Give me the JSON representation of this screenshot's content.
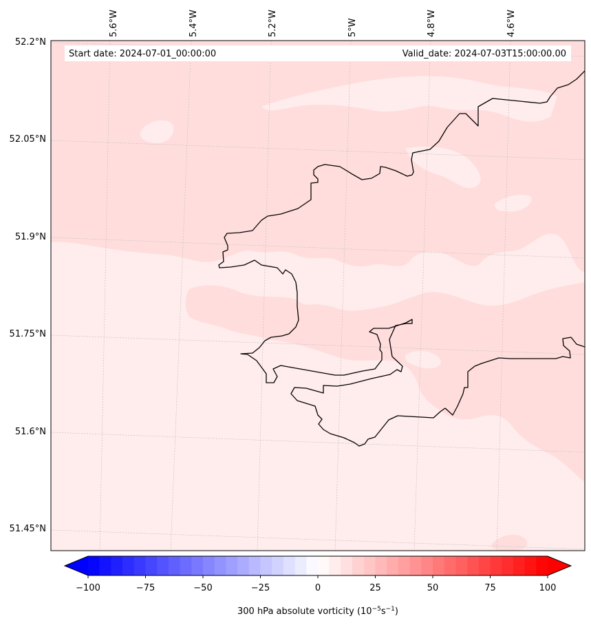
{
  "header": {
    "start_date": "Start date: 2024-07-01_00:00:00",
    "valid_date": "Valid_date: 2024-07-03T15:00:00.00"
  },
  "longitude_labels": [
    "5.6°W",
    "5.4°W",
    "5.2°W",
    "5°W",
    "4.8°W",
    "4.6°W"
  ],
  "latitude_labels": [
    "52.2°N",
    "52.05°N",
    "51.9°N",
    "51.75°N",
    "51.6°N",
    "51.45°N"
  ],
  "colorbar": {
    "label": "300 hPa absolute vorticity (10",
    "label_exp1": "−5",
    "label_mid": "s",
    "label_exp2": "−1",
    "label_end": ")",
    "ticks": [
      "−100",
      "−75",
      "−50",
      "−25",
      "0",
      "25",
      "50",
      "75",
      "100"
    ],
    "min": -100,
    "max": 100,
    "low_color": "#0000ff",
    "high_color": "#ff0000"
  },
  "colors": {
    "field_low": "#ffecec",
    "field_mid": "#ffdddd",
    "coastline": "#000000",
    "gridline": "#bbbbbb"
  }
}
